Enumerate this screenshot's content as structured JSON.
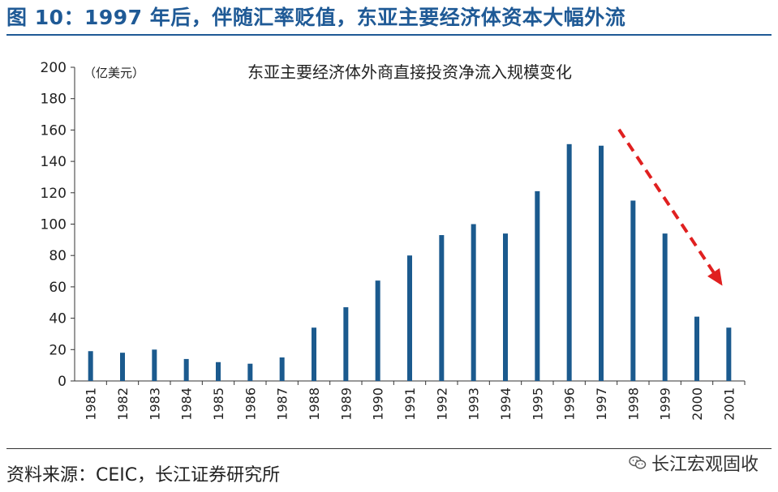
{
  "figure": {
    "title": "图 10：1997 年后，伴随汇率贬值，东亚主要经济体资本大幅外流",
    "source": "资料来源：CEIC，长江证券研究所",
    "watermark": "长江宏观固收"
  },
  "chart_data": {
    "type": "bar",
    "title": "东亚主要经济体外商直接投资净流入规模变化",
    "ylabel": "（亿美元）",
    "xlabel": "",
    "ylim": [
      0,
      200
    ],
    "yticks": [
      0,
      20,
      40,
      60,
      80,
      100,
      120,
      140,
      160,
      180,
      200
    ],
    "categories": [
      "1981",
      "1982",
      "1983",
      "1984",
      "1985",
      "1986",
      "1987",
      "1988",
      "1989",
      "1990",
      "1991",
      "1992",
      "1993",
      "1994",
      "1995",
      "1996",
      "1997",
      "1998",
      "1999",
      "2000",
      "2001"
    ],
    "values": [
      19,
      18,
      20,
      14,
      12,
      11,
      15,
      34,
      47,
      64,
      80,
      93,
      100,
      94,
      121,
      151,
      150,
      115,
      94,
      41,
      34
    ],
    "grid": false,
    "bar_color": "#1b5a8e",
    "annotation": {
      "type": "dashed-arrow",
      "color": "#e02020",
      "from_category": "1997",
      "to_category": "2001"
    }
  }
}
